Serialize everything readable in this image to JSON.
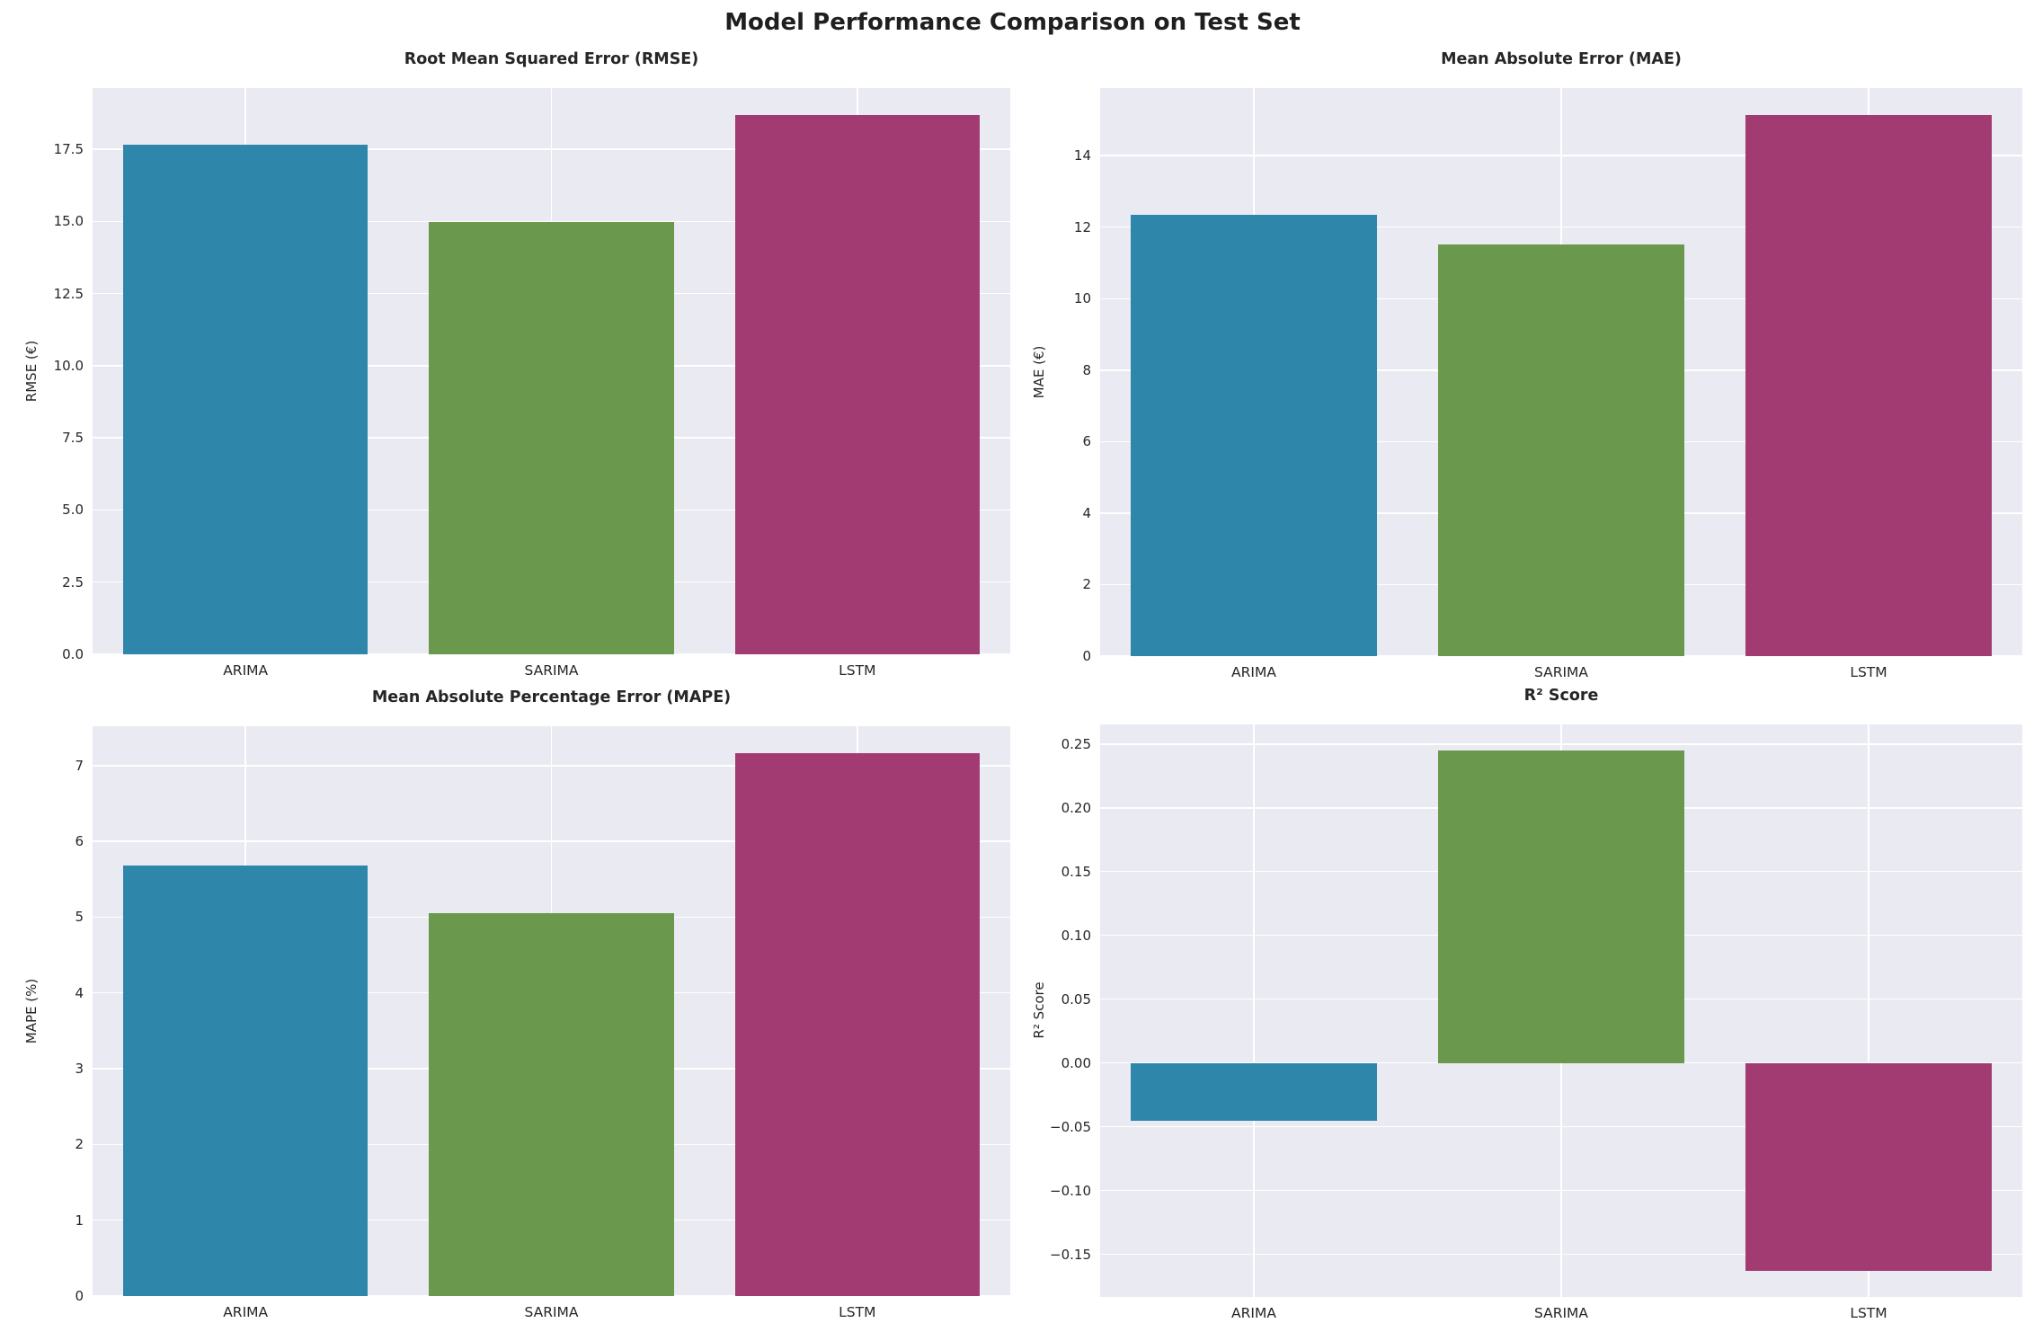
{
  "figure": {
    "suptitle": "Model Performance Comparison on Test Set"
  },
  "palette": {
    "figure_background": "#ffffff",
    "axes_background": "#eaeaf2",
    "gridline": "#ffffff",
    "tick_text": "#262626",
    "title_text": "#1f1f1f",
    "arima_blue": "#2e86ab",
    "sarima_green": "#6a994e",
    "lstm_magenta": "#a23b72"
  },
  "chart_data": [
    {
      "type": "bar",
      "title": "Root Mean Squared Error (RMSE)",
      "ylabel": "RMSE (€)",
      "xlabel": "",
      "categories": [
        "ARIMA",
        "SARIMA",
        "LSTM"
      ],
      "values": [
        17.65,
        14.97,
        18.69
      ],
      "bar_colors": [
        "#2e86ab",
        "#6a994e",
        "#a23b72"
      ],
      "ylim": [
        0,
        19.62
      ],
      "yticks": [
        0,
        2.5,
        5,
        7.5,
        10,
        12.5,
        15,
        17.5
      ],
      "ytick_labels": [
        "0.0",
        "2.5",
        "5.0",
        "7.5",
        "10.0",
        "12.5",
        "15.0",
        "17.5"
      ],
      "grid": true,
      "legend": "none"
    },
    {
      "type": "bar",
      "title": "Mean Absolute Error (MAE)",
      "ylabel": "MAE (€)",
      "xlabel": "",
      "categories": [
        "ARIMA",
        "SARIMA",
        "LSTM"
      ],
      "values": [
        12.35,
        11.51,
        15.13
      ],
      "bar_colors": [
        "#2e86ab",
        "#6a994e",
        "#a23b72"
      ],
      "ylim": [
        0,
        15.89
      ],
      "yticks": [
        0,
        2,
        4,
        6,
        8,
        10,
        12,
        14
      ],
      "ytick_labels": [
        "0",
        "2",
        "4",
        "6",
        "8",
        "10",
        "12",
        "14"
      ],
      "grid": true,
      "legend": "none"
    },
    {
      "type": "bar",
      "title": "Mean Absolute Percentage Error (MAPE)",
      "ylabel": "MAPE (%)",
      "xlabel": "",
      "categories": [
        "ARIMA",
        "SARIMA",
        "LSTM"
      ],
      "values": [
        5.68,
        5.05,
        7.16
      ],
      "bar_colors": [
        "#2e86ab",
        "#6a994e",
        "#a23b72"
      ],
      "ylim": [
        0,
        7.52
      ],
      "yticks": [
        0,
        1,
        2,
        3,
        4,
        5,
        6,
        7
      ],
      "ytick_labels": [
        "0",
        "1",
        "2",
        "3",
        "4",
        "5",
        "6",
        "7"
      ],
      "grid": true,
      "legend": "none"
    },
    {
      "type": "bar",
      "title": "R² Score",
      "ylabel": "R² Score",
      "xlabel": "",
      "categories": [
        "ARIMA",
        "SARIMA",
        "LSTM"
      ],
      "values": [
        -0.045,
        0.245,
        -0.163
      ],
      "bar_colors": [
        "#2e86ab",
        "#6a994e",
        "#a23b72"
      ],
      "ylim": [
        -0.1834,
        0.2654
      ],
      "yticks": [
        -0.15,
        -0.1,
        -0.05,
        0.0,
        0.05,
        0.1,
        0.15,
        0.2,
        0.25
      ],
      "ytick_labels": [
        "−0.15",
        "−0.10",
        "−0.05",
        "0.00",
        "0.05",
        "0.10",
        "0.15",
        "0.20",
        "0.25"
      ],
      "grid": true,
      "legend": "none"
    }
  ]
}
